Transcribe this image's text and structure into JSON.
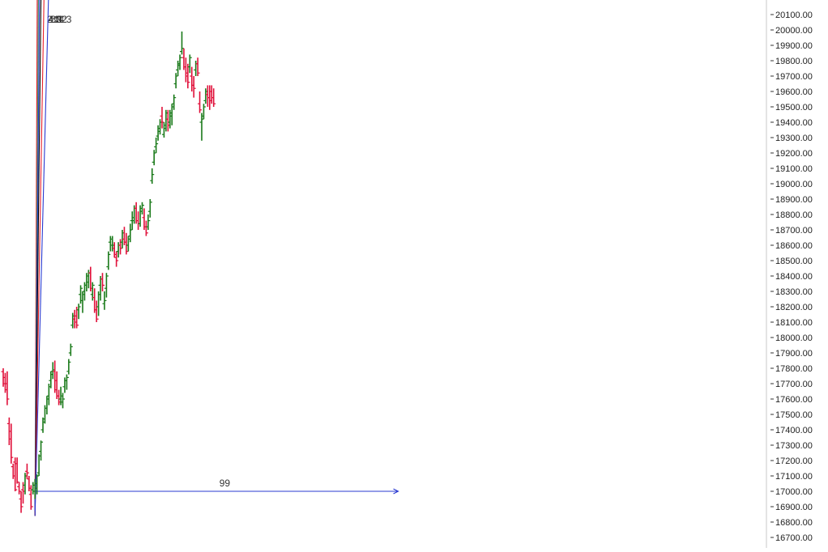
{
  "chart_data": {
    "type": "ohlc",
    "title": "",
    "xlabel": "",
    "ylabel": "",
    "ylim": [
      16650,
      20150
    ],
    "y_ticks": [
      "20100.00",
      "20000.00",
      "19900.00",
      "19800.00",
      "19700.00",
      "19600.00",
      "19500.00",
      "19400.00",
      "19300.00",
      "19200.00",
      "19100.00",
      "19000.00",
      "18900.00",
      "18800.00",
      "18700.00",
      "18600.00",
      "18500.00",
      "18400.00",
      "18300.00",
      "18200.00",
      "18100.00",
      "18000.00",
      "17900.00",
      "17800.00",
      "17700.00",
      "17600.00",
      "17500.00",
      "17400.00",
      "17300.00",
      "17200.00",
      "17100.00",
      "17000.00",
      "16900.00",
      "16800.00",
      "16700.00"
    ],
    "colors": {
      "up": "#1a7a1a",
      "down": "#e0103a",
      "fan_fill_steep": "#fde0e0",
      "fan_fill_main": "#e0e0fa"
    },
    "gann_fan": {
      "origin_bar": 16,
      "origin_price": 16840,
      "price_per_bar": 42,
      "lines": [
        {
          "label": "2:1",
          "ratio": 2,
          "color": "#e8202a"
        },
        {
          "label": "4:3",
          "ratio": 1.333,
          "color": "#3c9a6a"
        },
        {
          "label": "1:1",
          "ratio": 1,
          "color": "#2a3ad0"
        },
        {
          "label": "3:4",
          "ratio": 0.75,
          "color": "#000000"
        },
        {
          "label": "1:2",
          "ratio": 0.5,
          "color": "#e8202a"
        },
        {
          "label": "1:3",
          "ratio": 0.333,
          "color": "#2a3ad0"
        }
      ]
    },
    "measure": {
      "label": "99",
      "start_bar": 16,
      "end_bar": 199,
      "price": 17000,
      "color": "#2a3ad0"
    },
    "bars": [
      [
        17778,
        17800,
        17680,
        17700
      ],
      [
        17740,
        17770,
        17640,
        17660
      ],
      [
        17700,
        17780,
        17560,
        17600
      ],
      [
        17440,
        17480,
        17300,
        17340
      ],
      [
        17390,
        17440,
        17180,
        17220
      ],
      [
        17160,
        17180,
        17080,
        17100
      ],
      [
        17190,
        17220,
        17000,
        17010
      ],
      [
        17180,
        17220,
        17050,
        17060
      ],
      [
        17030,
        17060,
        16980,
        17000
      ],
      [
        16950,
        17000,
        16860,
        16900
      ],
      [
        17010,
        17060,
        16920,
        17000
      ],
      [
        17040,
        17120,
        16980,
        17100
      ],
      [
        17130,
        17180,
        17080,
        17120
      ],
      [
        17080,
        17100,
        17000,
        17020
      ],
      [
        16980,
        17040,
        16880,
        16900
      ],
      [
        17010,
        17060,
        16980,
        17040
      ],
      [
        17000,
        17080,
        16950,
        17050
      ],
      [
        17020,
        17110,
        16980,
        17100
      ],
      [
        17120,
        17240,
        17100,
        17230
      ],
      [
        17260,
        17330,
        17200,
        17320
      ],
      [
        17400,
        17480,
        17380,
        17450
      ],
      [
        17470,
        17560,
        17440,
        17540
      ],
      [
        17540,
        17620,
        17500,
        17600
      ],
      [
        17620,
        17700,
        17560,
        17680
      ],
      [
        17720,
        17780,
        17670,
        17760
      ],
      [
        17780,
        17840,
        17730,
        17790
      ],
      [
        17780,
        17850,
        17640,
        17660
      ],
      [
        17720,
        17780,
        17600,
        17620
      ],
      [
        17620,
        17660,
        17560,
        17580
      ],
      [
        17600,
        17680,
        17560,
        17620
      ],
      [
        17580,
        17640,
        17540,
        17600
      ],
      [
        17680,
        17740,
        17640,
        17720
      ],
      [
        17720,
        17760,
        17660,
        17740
      ],
      [
        17780,
        17860,
        17760,
        17840
      ],
      [
        17900,
        17960,
        17880,
        17940
      ],
      [
        18080,
        18160,
        18060,
        18140
      ],
      [
        18120,
        18180,
        18060,
        18100
      ],
      [
        18140,
        18200,
        18060,
        18080
      ],
      [
        18180,
        18220,
        18120,
        18200
      ],
      [
        18280,
        18340,
        18220,
        18320
      ],
      [
        18240,
        18300,
        18160,
        18280
      ],
      [
        18300,
        18360,
        18240,
        18340
      ],
      [
        18340,
        18420,
        18300,
        18400
      ],
      [
        18360,
        18440,
        18320,
        18420
      ],
      [
        18420,
        18460,
        18300,
        18320
      ],
      [
        18280,
        18360,
        18240,
        18340
      ],
      [
        18260,
        18320,
        18160,
        18180
      ],
      [
        18180,
        18240,
        18100,
        18120
      ],
      [
        18200,
        18300,
        18140,
        18280
      ],
      [
        18340,
        18400,
        18240,
        18380
      ],
      [
        18380,
        18420,
        18300,
        18340
      ],
      [
        18220,
        18300,
        18180,
        18240
      ],
      [
        18320,
        18420,
        18260,
        18400
      ],
      [
        18460,
        18560,
        18440,
        18540
      ],
      [
        18620,
        18660,
        18560,
        18640
      ],
      [
        18600,
        18660,
        18560,
        18600
      ],
      [
        18580,
        18620,
        18520,
        18540
      ],
      [
        18520,
        18560,
        18460,
        18500
      ],
      [
        18560,
        18620,
        18520,
        18600
      ],
      [
        18600,
        18640,
        18540,
        18580
      ],
      [
        18620,
        18700,
        18580,
        18680
      ],
      [
        18640,
        18720,
        18600,
        18620
      ],
      [
        18620,
        18680,
        18540,
        18560
      ],
      [
        18600,
        18660,
        18560,
        18640
      ],
      [
        18660,
        18740,
        18620,
        18700
      ],
      [
        18760,
        18820,
        18700,
        18780
      ],
      [
        18760,
        18860,
        18740,
        18840
      ],
      [
        18840,
        18880,
        18740,
        18760
      ],
      [
        18760,
        18820,
        18700,
        18740
      ],
      [
        18740,
        18860,
        18720,
        18840
      ],
      [
        18820,
        18880,
        18800,
        18860
      ],
      [
        18780,
        18840,
        18700,
        18720
      ],
      [
        18720,
        18760,
        18660,
        18680
      ],
      [
        18720,
        18800,
        18700,
        18760
      ],
      [
        18820,
        18900,
        18780,
        18880
      ],
      [
        19020,
        19100,
        19000,
        19060
      ],
      [
        19140,
        19220,
        19120,
        19200
      ],
      [
        19240,
        19300,
        19200,
        19260
      ],
      [
        19310,
        19380,
        19280,
        19340
      ],
      [
        19360,
        19420,
        19320,
        19400
      ],
      [
        19440,
        19500,
        19360,
        19400
      ],
      [
        19320,
        19400,
        19300,
        19360
      ],
      [
        19380,
        19480,
        19340,
        19460
      ],
      [
        19420,
        19480,
        19340,
        19380
      ],
      [
        19400,
        19480,
        19360,
        19460
      ],
      [
        19440,
        19520,
        19380,
        19500
      ],
      [
        19520,
        19580,
        19480,
        19560
      ],
      [
        19650,
        19720,
        19620,
        19700
      ],
      [
        19740,
        19800,
        19700,
        19780
      ],
      [
        19770,
        19840,
        19740,
        19820
      ],
      [
        19860,
        19990,
        19840,
        19880
      ],
      [
        19820,
        19880,
        19740,
        19760
      ],
      [
        19760,
        19820,
        19660,
        19700
      ],
      [
        19720,
        19780,
        19620,
        19660
      ],
      [
        19760,
        19840,
        19720,
        19820
      ],
      [
        19700,
        19760,
        19600,
        19640
      ],
      [
        19640,
        19700,
        19560,
        19620
      ],
      [
        19740,
        19800,
        19700,
        19780
      ],
      [
        19780,
        19820,
        19700,
        19720
      ],
      [
        19520,
        19600,
        19460,
        19480
      ],
      [
        19400,
        19460,
        19280,
        19420
      ],
      [
        19440,
        19520,
        19420,
        19500
      ],
      [
        19540,
        19620,
        19520,
        19600
      ],
      [
        19580,
        19640,
        19500,
        19560
      ],
      [
        19560,
        19640,
        19480,
        19540
      ],
      [
        19600,
        19640,
        19520,
        19560
      ],
      [
        19560,
        19620,
        19500,
        19520
      ]
    ]
  }
}
